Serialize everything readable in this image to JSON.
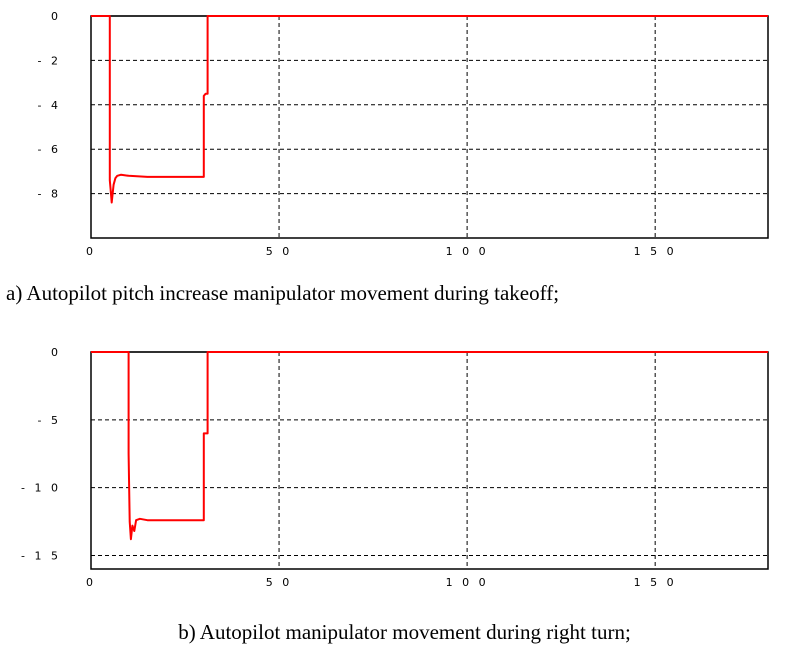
{
  "chart_data": [
    {
      "type": "line",
      "caption": "a) Autopilot pitch increase manipulator movement during takeoff;",
      "xlim": [
        0,
        180
      ],
      "ylim": [
        -10,
        0
      ],
      "x_ticks": [
        0,
        50,
        100,
        150
      ],
      "x_tick_labels": [
        "0",
        "5 0",
        "1 0 0",
        "1 5 0"
      ],
      "y_ticks": [
        0,
        -2,
        -4,
        -6,
        -8
      ],
      "y_tick_labels": [
        "0",
        "- 2",
        "- 4",
        "- 6",
        "- 8"
      ],
      "grid": true,
      "series": [
        {
          "color": "#ff0000",
          "x": [
            0,
            5,
            5,
            5.2,
            5.5,
            6,
            6.5,
            7,
            8,
            10,
            15,
            20,
            30,
            30,
            30.5,
            31,
            31,
            180
          ],
          "y": [
            0,
            0,
            -7.4,
            -7.8,
            -8.4,
            -7.6,
            -7.3,
            -7.2,
            -7.15,
            -7.2,
            -7.25,
            -7.25,
            -7.25,
            -3.6,
            -3.5,
            -3.5,
            0,
            0
          ]
        },
        {
          "color": "#000000",
          "x": [
            5,
            31
          ],
          "y": [
            0,
            0
          ]
        }
      ]
    },
    {
      "type": "line",
      "caption": "b) Autopilot manipulator movement during right turn;",
      "xlim": [
        0,
        180
      ],
      "ylim": [
        -16,
        0
      ],
      "x_ticks": [
        0,
        50,
        100,
        150
      ],
      "x_tick_labels": [
        "0",
        "5 0",
        "1 0 0",
        "1 5 0"
      ],
      "y_ticks": [
        0,
        -5,
        -10,
        -15
      ],
      "y_tick_labels": [
        "0",
        "- 5",
        "- 1 0",
        "- 1 5"
      ],
      "grid": true,
      "series": [
        {
          "color": "#ff0000",
          "x": [
            0,
            10,
            10,
            10.3,
            10.6,
            11,
            11.5,
            12,
            13,
            15,
            20,
            30,
            30,
            30.5,
            31,
            31,
            180
          ],
          "y": [
            0,
            0,
            -7.5,
            -12.5,
            -13.8,
            -12.8,
            -13.2,
            -12.4,
            -12.3,
            -12.4,
            -12.4,
            -12.4,
            -6,
            -6,
            -6,
            0,
            0
          ]
        },
        {
          "color": "#000000",
          "x": [
            10,
            31
          ],
          "y": [
            0,
            0
          ]
        }
      ]
    }
  ]
}
